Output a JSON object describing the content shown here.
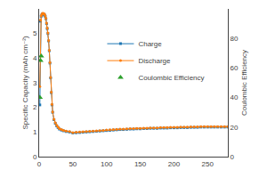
{
  "chart_data": {
    "type": "line",
    "ylabel": "Specific Capacity (mAh cm⁻²)",
    "y2label": "Coulombic Efficiency",
    "xlim": [
      0,
      280
    ],
    "xticks": [
      0,
      50,
      100,
      150,
      200,
      250
    ],
    "ylim": [
      0,
      6
    ],
    "yticks": [
      0,
      1,
      2,
      3,
      4,
      5
    ],
    "y2lim": [
      0,
      100
    ],
    "y2ticks": [
      0,
      20,
      40,
      60,
      80
    ],
    "grid": false,
    "legend": "center",
    "series": [
      {
        "name": "Charge",
        "type": "line",
        "marker": "square",
        "x": [
          1,
          2,
          3,
          4,
          5,
          6,
          7,
          8,
          9,
          10,
          11,
          12,
          13,
          14,
          15,
          16,
          17,
          18,
          19,
          20,
          22,
          24,
          26,
          28,
          30,
          33,
          36,
          40,
          45,
          50,
          55,
          60,
          65,
          70,
          75,
          80,
          85,
          90,
          95,
          100,
          105,
          110,
          115,
          120,
          125,
          130,
          135,
          140,
          145,
          150,
          155,
          160,
          165,
          170,
          175,
          180,
          185,
          190,
          195,
          200,
          205,
          210,
          215,
          220,
          225,
          230,
          235,
          240,
          245,
          250,
          255,
          260,
          265,
          270,
          275,
          280
        ],
        "values": [
          2.1,
          5.5,
          5.7,
          5.75,
          5.8,
          5.8,
          5.78,
          5.75,
          5.7,
          5.6,
          5.4,
          5.2,
          5.0,
          4.7,
          4.3,
          3.8,
          3.2,
          2.6,
          2.1,
          1.8,
          1.5,
          1.35,
          1.25,
          1.18,
          1.12,
          1.08,
          1.05,
          1.02,
          1.0,
          0.96,
          0.97,
          0.98,
          0.99,
          1.0,
          1.01,
          1.02,
          1.03,
          1.04,
          1.05,
          1.06,
          1.07,
          1.08,
          1.09,
          1.1,
          1.1,
          1.11,
          1.12,
          1.12,
          1.13,
          1.13,
          1.14,
          1.14,
          1.15,
          1.15,
          1.15,
          1.16,
          1.16,
          1.16,
          1.17,
          1.17,
          1.17,
          1.18,
          1.18,
          1.18,
          1.19,
          1.19,
          1.19,
          1.2,
          1.2,
          1.2,
          1.2,
          1.2,
          1.2,
          1.2,
          1.2,
          1.2
        ]
      },
      {
        "name": "Discharge",
        "type": "line",
        "marker": "circle",
        "x": [
          1,
          2,
          3,
          4,
          5,
          6,
          7,
          8,
          9,
          10,
          11,
          12,
          13,
          14,
          15,
          16,
          17,
          18,
          19,
          20,
          22,
          24,
          26,
          28,
          30,
          33,
          36,
          40,
          45,
          50,
          55,
          60,
          65,
          70,
          75,
          80,
          85,
          90,
          95,
          100,
          105,
          110,
          115,
          120,
          125,
          130,
          135,
          140,
          145,
          150,
          155,
          160,
          165,
          170,
          175,
          180,
          185,
          190,
          195,
          200,
          205,
          210,
          215,
          220,
          225,
          230,
          235,
          240,
          245,
          250,
          255,
          260,
          265,
          270,
          275,
          280
        ],
        "values": [
          2.85,
          5.55,
          5.72,
          5.78,
          5.82,
          5.82,
          5.8,
          5.78,
          5.72,
          5.62,
          5.42,
          5.22,
          5.02,
          4.72,
          4.32,
          3.82,
          3.22,
          2.62,
          2.12,
          1.82,
          1.52,
          1.37,
          1.27,
          1.2,
          1.14,
          1.1,
          1.07,
          1.04,
          1.02,
          0.98,
          0.99,
          1.0,
          1.01,
          1.02,
          1.03,
          1.04,
          1.05,
          1.06,
          1.07,
          1.08,
          1.09,
          1.1,
          1.11,
          1.12,
          1.12,
          1.13,
          1.14,
          1.14,
          1.15,
          1.15,
          1.16,
          1.16,
          1.17,
          1.17,
          1.17,
          1.18,
          1.18,
          1.18,
          1.19,
          1.19,
          1.19,
          1.2,
          1.2,
          1.2,
          1.21,
          1.21,
          1.21,
          1.22,
          1.22,
          1.22,
          1.22,
          1.22,
          1.22,
          1.22,
          1.22,
          1.22
        ]
      },
      {
        "name": "Coulombic Efficiency",
        "type": "scatter",
        "marker": "triangle-up",
        "axis": "y2",
        "x": [
          1,
          2,
          3
        ],
        "values": [
          40,
          65,
          68
        ]
      }
    ]
  }
}
